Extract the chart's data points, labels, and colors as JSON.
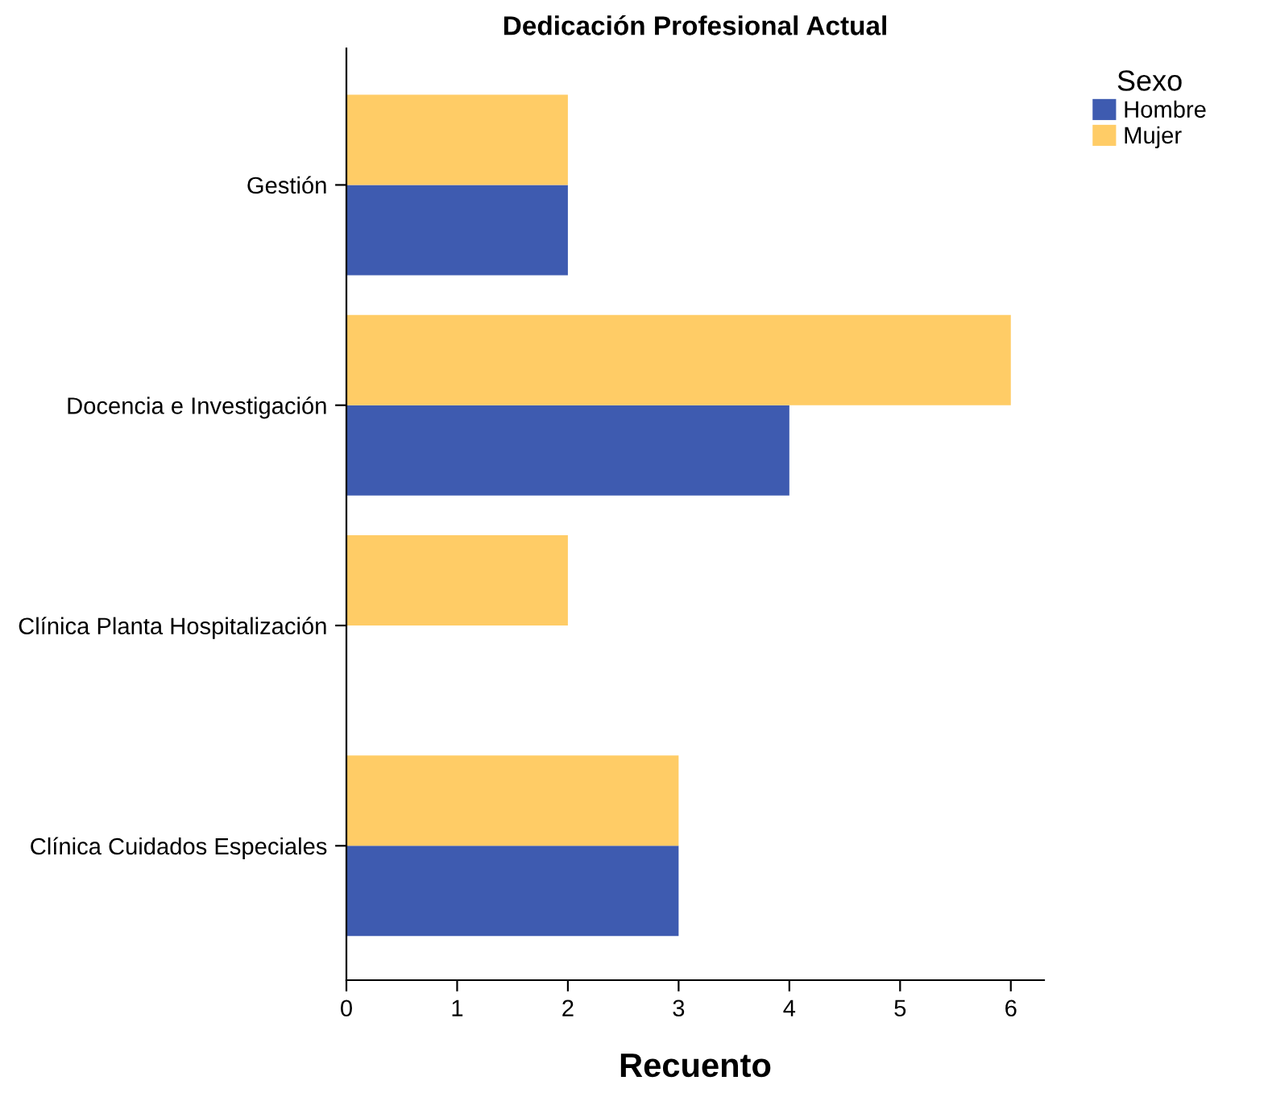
{
  "chart_data": {
    "type": "bar",
    "orientation": "horizontal",
    "title": "Dedicación Profesional Actual",
    "xlabel": "Recuento",
    "legend_title": "Sexo",
    "legend": "top right",
    "categories": [
      "Gestión",
      "Docencia e Investigación",
      "Clínica Planta Hospitalización",
      "Clínica Cuidados Especiales"
    ],
    "series": [
      {
        "name": "Hombre",
        "color": "#3e5bb0",
        "values": [
          2,
          4,
          0,
          3
        ]
      },
      {
        "name": "Mujer",
        "color": "#ffcc66",
        "values": [
          2,
          6,
          2,
          3
        ]
      }
    ],
    "xlim": [
      0,
      6.3
    ],
    "xticks": [
      0,
      1,
      2,
      3,
      4,
      5,
      6
    ],
    "grid": false
  }
}
